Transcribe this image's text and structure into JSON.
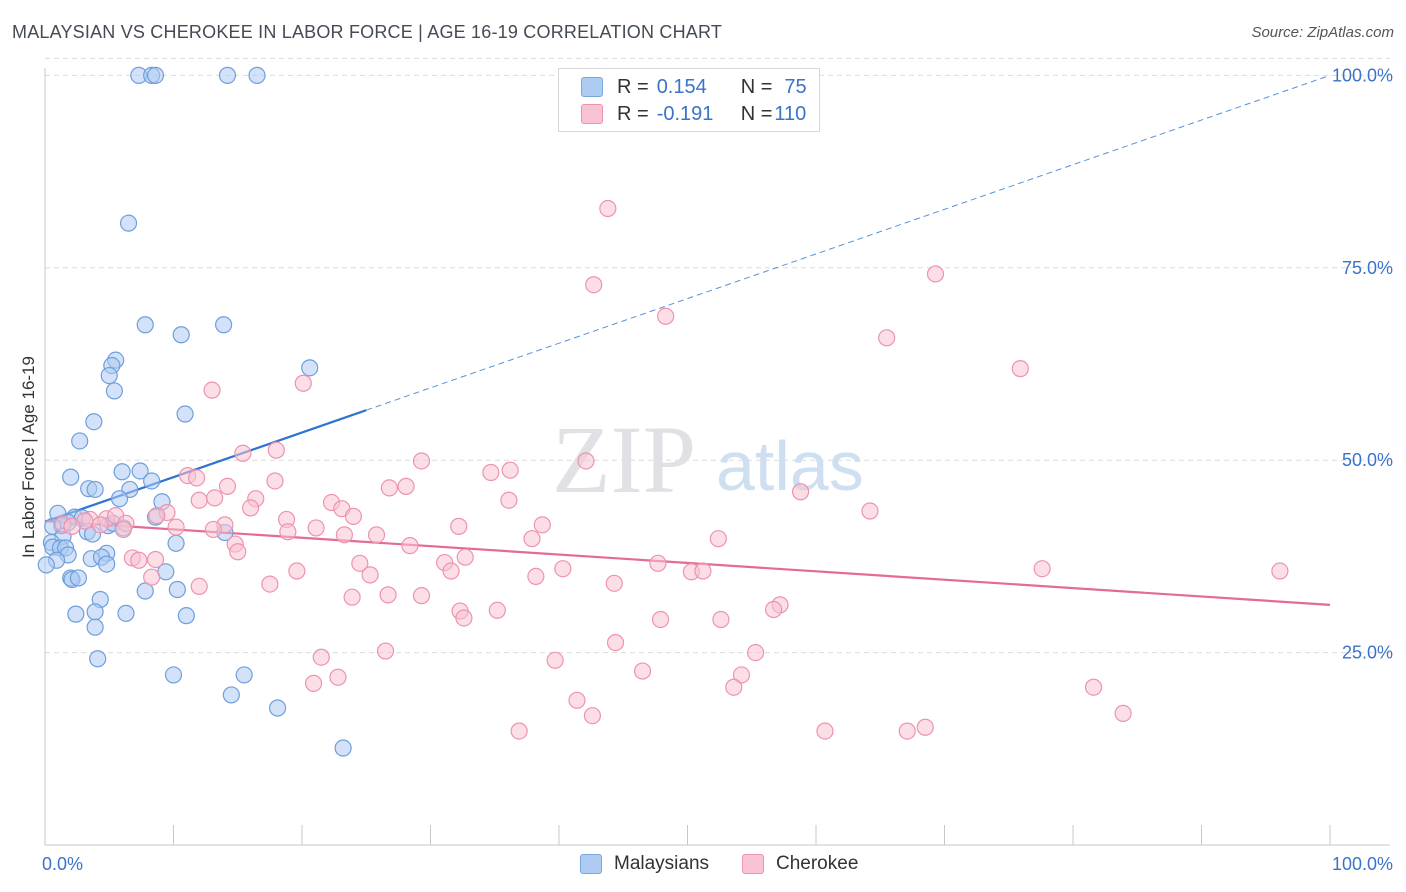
{
  "title": "MALAYSIAN VS CHEROKEE IN LABOR FORCE | AGE 16-19 CORRELATION CHART",
  "source": "Source: ZipAtlas.com",
  "watermark": {
    "zip": "ZIP",
    "atlas": "atlas"
  },
  "legend": {
    "rows": [
      {
        "r_label": "R = ",
        "r_value": "0.154",
        "n_label": "N = ",
        "n_value": "75",
        "color": "#aecbf2",
        "border": "#7aa6e0"
      },
      {
        "r_label": "R = ",
        "r_value": "-0.191",
        "n_label": "N = ",
        "n_value": "110",
        "color": "#f8c3d2",
        "border": "#ee93ae"
      }
    ]
  },
  "bottom_legend": {
    "malaysians": "Malaysians",
    "cherokee": "Cherokee"
  },
  "colors": {
    "blue_fill": "#aecbf2",
    "blue_stroke": "#6d9fdc",
    "blue_line": "#2f74d0",
    "pink_fill": "#f8c3d2",
    "pink_stroke": "#ee93ae",
    "pink_line": "#e36b96",
    "grid": "#dcdcdc",
    "axis_text": "#3a73c9"
  },
  "chart_data": {
    "type": "scatter",
    "title": "MALAYSIAN VS CHEROKEE IN LABOR FORCE | AGE 16-19 CORRELATION CHART",
    "xlabel": "",
    "ylabel": "In Labor Force | Age 16-19",
    "xlim": [
      0,
      100
    ],
    "ylim": [
      0,
      102
    ],
    "x_tick_labels": [
      "0.0%",
      "100.0%"
    ],
    "y_ticks": [
      25,
      50,
      75,
      100
    ],
    "y_tick_labels": [
      "25.0%",
      "50.0%",
      "75.0%",
      "100.0%"
    ],
    "grid": true,
    "series": [
      {
        "name": "Malaysians",
        "R": 0.154,
        "N": 75,
        "trend": {
          "x0": 0,
          "y0": 42,
          "x1": 100,
          "y1": 100,
          "solid_until_x": 25
        },
        "points": [
          [
            7.3,
            100
          ],
          [
            8.3,
            100
          ],
          [
            8.6,
            100
          ],
          [
            14.2,
            100
          ],
          [
            16.5,
            100
          ],
          [
            6.5,
            80.8
          ],
          [
            7.8,
            67.6
          ],
          [
            10.6,
            66.3
          ],
          [
            13.9,
            67.6
          ],
          [
            5.5,
            63
          ],
          [
            5.2,
            62.3
          ],
          [
            5.0,
            61
          ],
          [
            5.4,
            59
          ],
          [
            20.6,
            62
          ],
          [
            3.8,
            55
          ],
          [
            10.9,
            56
          ],
          [
            2.7,
            52.5
          ],
          [
            6.0,
            48.5
          ],
          [
            7.4,
            48.6
          ],
          [
            2.0,
            47.8
          ],
          [
            8.3,
            47.3
          ],
          [
            3.4,
            46.3
          ],
          [
            6.6,
            46.2
          ],
          [
            3.9,
            46.2
          ],
          [
            5.8,
            45
          ],
          [
            9.1,
            44.6
          ],
          [
            8.6,
            42.6
          ],
          [
            1.0,
            43.1
          ],
          [
            2.3,
            42.6
          ],
          [
            2.9,
            42.5
          ],
          [
            1.8,
            41.9
          ],
          [
            1.3,
            41.5
          ],
          [
            0.6,
            41.4
          ],
          [
            4.9,
            41.5
          ],
          [
            5.3,
            41.8
          ],
          [
            6.1,
            41.2
          ],
          [
            3.3,
            40.7
          ],
          [
            3.7,
            40.4
          ],
          [
            14.0,
            40.6
          ],
          [
            1.4,
            40.1
          ],
          [
            0.5,
            39.3
          ],
          [
            0.6,
            38.7
          ],
          [
            1.2,
            38.6
          ],
          [
            1.6,
            38.6
          ],
          [
            10.2,
            39.2
          ],
          [
            1.8,
            37.7
          ],
          [
            4.8,
            37.9
          ],
          [
            3.6,
            37.2
          ],
          [
            0.9,
            37
          ],
          [
            4.4,
            37.4
          ],
          [
            4.8,
            36.5
          ],
          [
            0.1,
            36.4
          ],
          [
            9.4,
            35.5
          ],
          [
            2.0,
            34.7
          ],
          [
            2.1,
            34.5
          ],
          [
            2.6,
            34.7
          ],
          [
            7.8,
            33
          ],
          [
            10.3,
            33.2
          ],
          [
            4.3,
            31.9
          ],
          [
            2.4,
            30
          ],
          [
            3.9,
            30.3
          ],
          [
            6.3,
            30.1
          ],
          [
            11.0,
            29.8
          ],
          [
            3.9,
            28.3
          ],
          [
            4.1,
            24.2
          ],
          [
            10.0,
            22.1
          ],
          [
            15.5,
            22.1
          ],
          [
            14.5,
            19.5
          ],
          [
            18.1,
            17.8
          ],
          [
            23.2,
            12.6
          ]
        ]
      },
      {
        "name": "Cherokee",
        "R": -0.191,
        "N": 110,
        "trend": {
          "x0": 0,
          "y0": 42.1,
          "x1": 100,
          "y1": 31.2
        },
        "points": [
          [
            43.8,
            82.7
          ],
          [
            69.3,
            74.2
          ],
          [
            42.7,
            72.8
          ],
          [
            48.3,
            68.7
          ],
          [
            65.5,
            65.9
          ],
          [
            75.9,
            61.9
          ],
          [
            20.1,
            60
          ],
          [
            13.0,
            59.1
          ],
          [
            18.0,
            51.3
          ],
          [
            15.4,
            50.9
          ],
          [
            29.3,
            49.9
          ],
          [
            42.1,
            49.9
          ],
          [
            36.2,
            48.7
          ],
          [
            11.1,
            48
          ],
          [
            11.8,
            47.7
          ],
          [
            34.7,
            48.4
          ],
          [
            17.9,
            47.3
          ],
          [
            28.1,
            46.6
          ],
          [
            26.8,
            46.4
          ],
          [
            14.2,
            46.6
          ],
          [
            58.8,
            45.9
          ],
          [
            12.0,
            44.8
          ],
          [
            13.2,
            45.1
          ],
          [
            16.4,
            45
          ],
          [
            36.1,
            44.8
          ],
          [
            22.3,
            44.5
          ],
          [
            23.1,
            43.7
          ],
          [
            16.0,
            43.8
          ],
          [
            9.5,
            43.2
          ],
          [
            18.8,
            42.3
          ],
          [
            24.0,
            42.7
          ],
          [
            64.2,
            43.4
          ],
          [
            3.5,
            42.3
          ],
          [
            4.8,
            42.4
          ],
          [
            5.5,
            42.8
          ],
          [
            3.1,
            42.1
          ],
          [
            4.3,
            41.6
          ],
          [
            6.3,
            41.8
          ],
          [
            1.4,
            41.7
          ],
          [
            2.1,
            41.4
          ],
          [
            10.2,
            41.3
          ],
          [
            14.0,
            41.6
          ],
          [
            18.9,
            40.7
          ],
          [
            21.1,
            41.2
          ],
          [
            32.2,
            41.4
          ],
          [
            38.7,
            41.6
          ],
          [
            6.1,
            41
          ],
          [
            8.7,
            42.8
          ],
          [
            13.1,
            41
          ],
          [
            23.3,
            40.3
          ],
          [
            25.8,
            40.3
          ],
          [
            37.9,
            39.8
          ],
          [
            52.4,
            39.8
          ],
          [
            14.8,
            39.1
          ],
          [
            28.4,
            38.9
          ],
          [
            15.0,
            38.1
          ],
          [
            32.7,
            37.4
          ],
          [
            6.8,
            37.3
          ],
          [
            7.3,
            37
          ],
          [
            8.6,
            37.1
          ],
          [
            31.1,
            36.7
          ],
          [
            24.5,
            36.6
          ],
          [
            47.7,
            36.6
          ],
          [
            19.6,
            35.6
          ],
          [
            31.6,
            35.6
          ],
          [
            50.3,
            35.5
          ],
          [
            51.2,
            35.6
          ],
          [
            77.6,
            35.9
          ],
          [
            96.1,
            35.6
          ],
          [
            40.3,
            35.9
          ],
          [
            25.3,
            35.1
          ],
          [
            8.3,
            34.8
          ],
          [
            38.2,
            34.9
          ],
          [
            17.5,
            33.9
          ],
          [
            12.0,
            33.6
          ],
          [
            44.3,
            34
          ],
          [
            26.7,
            32.5
          ],
          [
            23.9,
            32.2
          ],
          [
            29.3,
            32.4
          ],
          [
            57.2,
            31.2
          ],
          [
            35.2,
            30.5
          ],
          [
            32.3,
            30.4
          ],
          [
            56.7,
            30.6
          ],
          [
            32.6,
            29.5
          ],
          [
            47.9,
            29.3
          ],
          [
            52.6,
            29.3
          ],
          [
            26.5,
            25.2
          ],
          [
            44.4,
            26.3
          ],
          [
            55.3,
            25
          ],
          [
            21.5,
            24.4
          ],
          [
            39.7,
            24
          ],
          [
            46.5,
            22.6
          ],
          [
            54.2,
            22.1
          ],
          [
            22.8,
            21.8
          ],
          [
            20.9,
            21
          ],
          [
            53.6,
            20.5
          ],
          [
            81.6,
            20.5
          ],
          [
            41.4,
            18.8
          ],
          [
            42.6,
            16.8
          ],
          [
            83.9,
            17.1
          ],
          [
            36.9,
            14.8
          ],
          [
            60.7,
            14.8
          ],
          [
            67.1,
            14.8
          ],
          [
            68.5,
            15.3
          ]
        ]
      }
    ]
  }
}
